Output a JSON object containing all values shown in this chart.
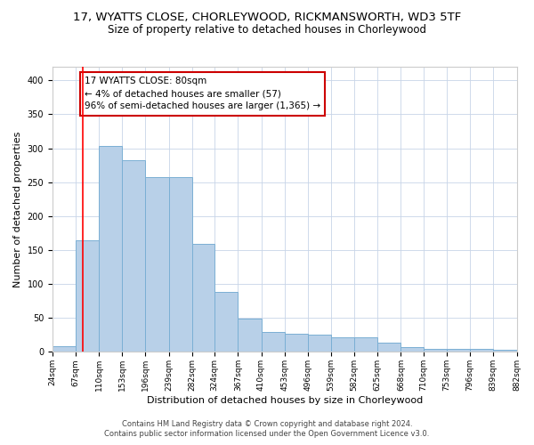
{
  "title1": "17, WYATTS CLOSE, CHORLEYWOOD, RICKMANSWORTH, WD3 5TF",
  "title2": "Size of property relative to detached houses in Chorleywood",
  "xlabel": "Distribution of detached houses by size in Chorleywood",
  "ylabel": "Number of detached properties",
  "footer1": "Contains HM Land Registry data © Crown copyright and database right 2024.",
  "footer2": "Contains public sector information licensed under the Open Government Licence v3.0.",
  "annotation_line1": "17 WYATTS CLOSE: 80sqm",
  "annotation_line2": "← 4% of detached houses are smaller (57)",
  "annotation_line3": "96% of semi-detached houses are larger (1,365) →",
  "bar_color": "#b8d0e8",
  "bar_edge_color": "#7bafd4",
  "redline_color": "#ff0000",
  "redline_x": 80,
  "bins": [
    24,
    67,
    110,
    153,
    196,
    239,
    282,
    324,
    367,
    410,
    453,
    496,
    539,
    582,
    625,
    668,
    710,
    753,
    796,
    839,
    882
  ],
  "heights": [
    9,
    165,
    303,
    283,
    258,
    258,
    159,
    88,
    49,
    30,
    27,
    25,
    21,
    21,
    14,
    7,
    5,
    4,
    5,
    3,
    3
  ],
  "ylim": [
    0,
    420
  ],
  "yticks": [
    0,
    50,
    100,
    150,
    200,
    250,
    300,
    350,
    400
  ],
  "bg_color": "#ffffff",
  "grid_color": "#c8d4e8",
  "annotation_box_color": "#ffffff",
  "annotation_box_edge": "#cc0000",
  "title1_fontsize": 9.5,
  "title2_fontsize": 8.5,
  "tick_label_fontsize": 6.5,
  "ylabel_fontsize": 8,
  "xlabel_fontsize": 8,
  "annotation_fontsize": 7.5,
  "footer_fontsize": 6
}
